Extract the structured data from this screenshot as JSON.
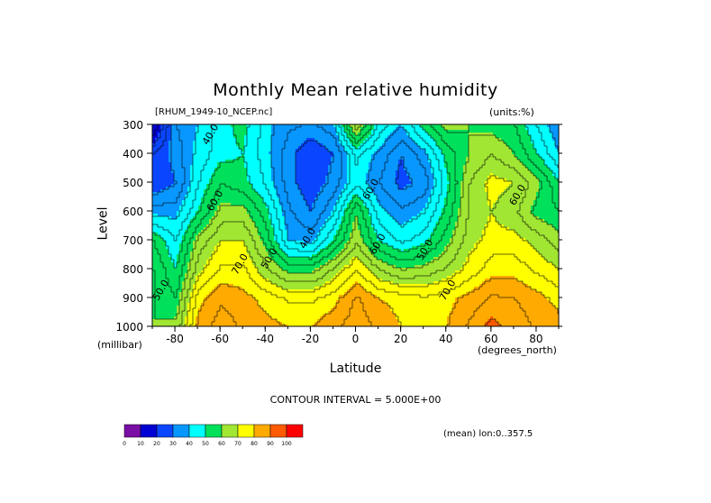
{
  "title": "Monthly Mean relative humidity",
  "file_label": "[RHUM_1949-10_NCEP.nc]",
  "units_label": "(units:%)",
  "contour_interval": "CONTOUR INTERVAL = 5.000E+00",
  "mean_note": "(mean) lon:0..357.5",
  "chart_data": {
    "type": "heatmap",
    "title": "Monthly Mean relative humidity",
    "xlabel": "Latitude",
    "x_unit": "(degrees_north)",
    "ylabel": "Level",
    "y_unit": "(millibar)",
    "xlim": [
      -90,
      90
    ],
    "ylim": [
      1000,
      300
    ],
    "x_ticks": [
      -80,
      -60,
      -40,
      -20,
      0,
      20,
      40,
      60,
      80
    ],
    "x_tick_labels": [
      "-80",
      "-60",
      "-40",
      "-20",
      "0",
      "20",
      "40",
      "60",
      "80"
    ],
    "y_ticks": [
      300,
      400,
      500,
      600,
      700,
      800,
      900,
      1000
    ],
    "y_tick_labels": [
      "300",
      "400",
      "500",
      "600",
      "700",
      "800",
      "900",
      "1000"
    ],
    "contour_labels": [
      {
        "text": "40.0",
        "lat": -63,
        "level": 340
      },
      {
        "text": "60.0",
        "lat": -61,
        "level": 570
      },
      {
        "text": "70.0",
        "lat": -50,
        "level": 790
      },
      {
        "text": "50.0",
        "lat": -37,
        "level": 770
      },
      {
        "text": "40.0",
        "lat": -20,
        "level": 700
      },
      {
        "text": "60.0",
        "lat": 8,
        "level": 530
      },
      {
        "text": "60.0",
        "lat": 11,
        "level": 720
      },
      {
        "text": "50.0",
        "lat": 32,
        "level": 740
      },
      {
        "text": "70.0",
        "lat": 42,
        "level": 880
      },
      {
        "text": "60.0",
        "lat": 73,
        "level": 550
      },
      {
        "text": "50.0",
        "lat": -85,
        "level": 880
      }
    ],
    "colorbar": {
      "ticks": [
        "0",
        "10",
        "20",
        "30",
        "40",
        "50",
        "60",
        "70",
        "80",
        "90",
        "100"
      ],
      "colors": [
        "#7a0fa5",
        "#0000d4",
        "#0a46ff",
        "#0896ff",
        "#00ffff",
        "#00e05a",
        "#a0e632",
        "#ffff00",
        "#ffaa00",
        "#ff5a00",
        "#ff0000"
      ]
    },
    "lats": [
      -90,
      -80,
      -70,
      -60,
      -50,
      -40,
      -30,
      -20,
      -10,
      0,
      10,
      20,
      30,
      40,
      50,
      60,
      70,
      80,
      90
    ],
    "levels": [
      300,
      400,
      500,
      600,
      700,
      800,
      900,
      1000
    ],
    "grid_values": [
      [
        10,
        35,
        40,
        48,
        52,
        42,
        36,
        34,
        38,
        68,
        48,
        40,
        52,
        62,
        60,
        58,
        55,
        45,
        35
      ],
      [
        25,
        32,
        42,
        48,
        50,
        42,
        32,
        25,
        30,
        46,
        38,
        30,
        38,
        52,
        60,
        65,
        60,
        50,
        40
      ],
      [
        25,
        30,
        45,
        55,
        52,
        44,
        32,
        26,
        32,
        44,
        35,
        28,
        32,
        48,
        65,
        72,
        70,
        62,
        50
      ],
      [
        38,
        38,
        50,
        62,
        62,
        52,
        36,
        30,
        40,
        60,
        42,
        36,
        40,
        52,
        66,
        70,
        66,
        58,
        55
      ],
      [
        55,
        45,
        62,
        70,
        70,
        58,
        40,
        38,
        50,
        64,
        50,
        44,
        48,
        58,
        68,
        72,
        72,
        68,
        62
      ],
      [
        60,
        50,
        68,
        76,
        76,
        66,
        58,
        58,
        66,
        75,
        65,
        60,
        62,
        66,
        72,
        78,
        78,
        74,
        70
      ],
      [
        60,
        55,
        78,
        84,
        82,
        78,
        74,
        74,
        78,
        86,
        80,
        78,
        76,
        78,
        82,
        86,
        85,
        82,
        78
      ],
      [
        60,
        62,
        82,
        88,
        84,
        82,
        80,
        80,
        84,
        88,
        84,
        80,
        78,
        80,
        86,
        92,
        88,
        84,
        82
      ]
    ]
  }
}
